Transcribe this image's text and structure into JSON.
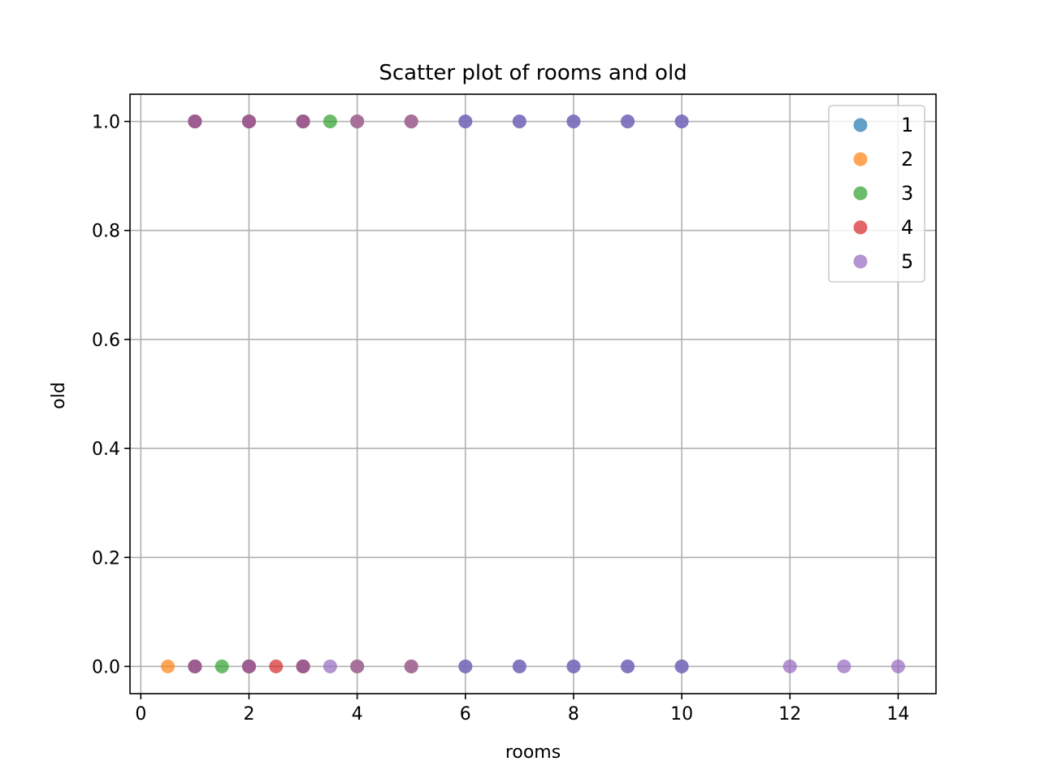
{
  "chart_data": {
    "type": "scatter",
    "title": "Scatter plot of rooms and old",
    "xlabel": "rooms",
    "ylabel": "old",
    "xlim": [
      -0.2,
      14.7
    ],
    "ylim": [
      -0.05,
      1.05
    ],
    "xticks": [
      0,
      2,
      4,
      6,
      8,
      10,
      12,
      14
    ],
    "xtick_labels": [
      "0",
      "2",
      "4",
      "6",
      "8",
      "10",
      "12",
      "14"
    ],
    "yticks": [
      0.0,
      0.2,
      0.4,
      0.6,
      0.8,
      1.0
    ],
    "ytick_labels": [
      "0.0",
      "0.2",
      "0.4",
      "0.6",
      "0.8",
      "1.0"
    ],
    "grid": true,
    "legend_position": "top-right",
    "marker_alpha": 0.7,
    "series": [
      {
        "name": "1",
        "color": "#1f77b4",
        "points": [
          [
            1,
            1
          ],
          [
            2,
            1
          ],
          [
            3,
            1
          ],
          [
            4,
            1
          ],
          [
            5,
            1
          ],
          [
            6,
            1
          ],
          [
            7,
            1
          ],
          [
            8,
            1
          ],
          [
            9,
            1
          ],
          [
            10,
            1
          ],
          [
            1,
            0
          ],
          [
            2,
            0
          ],
          [
            3,
            0
          ],
          [
            4,
            0
          ],
          [
            5,
            0
          ],
          [
            6,
            0
          ],
          [
            7,
            0
          ],
          [
            8,
            0
          ],
          [
            9,
            0
          ],
          [
            10,
            0
          ]
        ]
      },
      {
        "name": "2",
        "color": "#ff7f0e",
        "points": [
          [
            0.5,
            0
          ],
          [
            1,
            0
          ],
          [
            2,
            0
          ],
          [
            3,
            0
          ],
          [
            4,
            0
          ],
          [
            5,
            0
          ],
          [
            1,
            1
          ],
          [
            2,
            1
          ],
          [
            3,
            1
          ],
          [
            4,
            1
          ],
          [
            5,
            1
          ]
        ]
      },
      {
        "name": "3",
        "color": "#2ca02c",
        "points": [
          [
            1.5,
            0
          ],
          [
            3.5,
            1
          ],
          [
            1,
            0
          ],
          [
            2,
            0
          ],
          [
            3,
            0
          ],
          [
            1,
            1
          ],
          [
            2,
            1
          ],
          [
            3,
            1
          ]
        ]
      },
      {
        "name": "4",
        "color": "#d62728",
        "points": [
          [
            2.5,
            0
          ],
          [
            1,
            0
          ],
          [
            2,
            0
          ],
          [
            3,
            0
          ],
          [
            1,
            1
          ],
          [
            2,
            1
          ],
          [
            3,
            1
          ]
        ]
      },
      {
        "name": "5",
        "color": "#9467bd",
        "points": [
          [
            1,
            1
          ],
          [
            2,
            1
          ],
          [
            3,
            1
          ],
          [
            4,
            1
          ],
          [
            5,
            1
          ],
          [
            6,
            1
          ],
          [
            7,
            1
          ],
          [
            8,
            1
          ],
          [
            9,
            1
          ],
          [
            10,
            1
          ],
          [
            1,
            0
          ],
          [
            2,
            0
          ],
          [
            3,
            0
          ],
          [
            3.5,
            0
          ],
          [
            4,
            0
          ],
          [
            5,
            0
          ],
          [
            6,
            0
          ],
          [
            7,
            0
          ],
          [
            8,
            0
          ],
          [
            9,
            0
          ],
          [
            10,
            0
          ],
          [
            12,
            0
          ],
          [
            13,
            0
          ],
          [
            14,
            0
          ]
        ]
      }
    ]
  }
}
